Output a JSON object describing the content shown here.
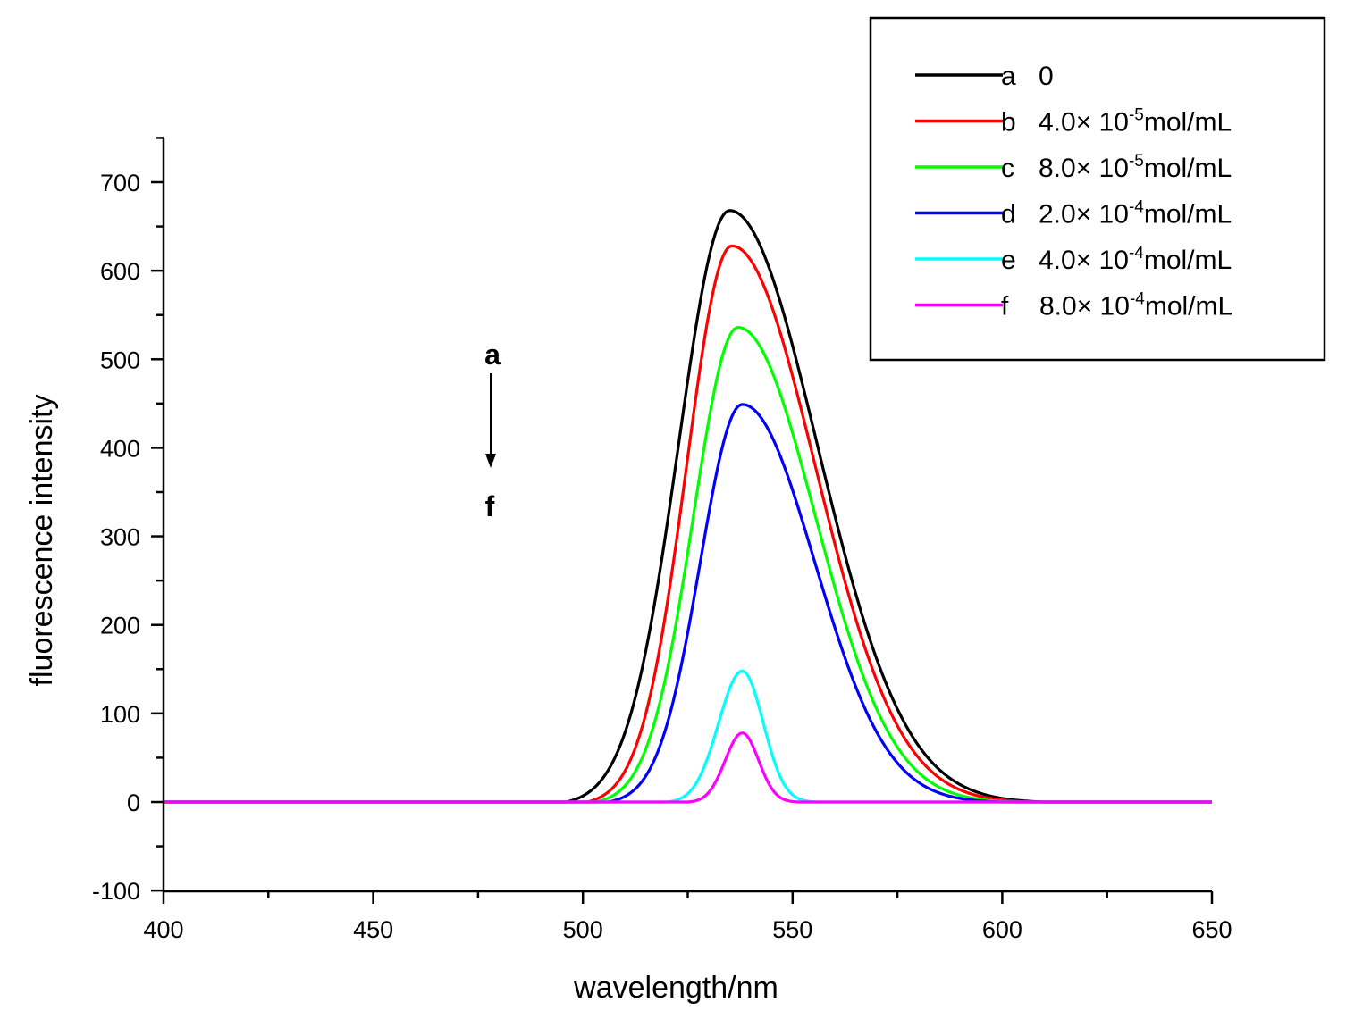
{
  "chart_data": {
    "type": "line",
    "title": "",
    "xlabel": "wavelength/nm",
    "ylabel": "fluorescence intensity",
    "xlim": [
      400,
      650
    ],
    "ylim": [
      -100,
      750
    ],
    "xticks": [
      400,
      450,
      500,
      550,
      600,
      650
    ],
    "yticks": [
      -100,
      0,
      100,
      200,
      300,
      400,
      500,
      600,
      700
    ],
    "grid": false,
    "legend_position": "top-right",
    "annotations": {
      "top_label": "a",
      "bottom_label": "f"
    },
    "series": [
      {
        "name": "a",
        "label_letter": "a",
        "label_value": "0",
        "superscript": "",
        "label_unit": "",
        "color": "#000000",
        "peak_x": 535,
        "peak_y": 668,
        "start_x": 496,
        "end_x": 610
      },
      {
        "name": "b",
        "label_letter": "b",
        "label_value": "4.0× 10",
        "superscript": "-5",
        "label_unit": "mol/mL",
        "color": "#ff0000",
        "peak_x": 535.5,
        "peak_y": 628,
        "start_x": 501,
        "end_x": 607
      },
      {
        "name": "c",
        "label_letter": "c",
        "label_value": "8.0× 10",
        "superscript": "-5",
        "label_unit": "mol/mL",
        "color": "#00ff00",
        "peak_x": 537,
        "peak_y": 536,
        "start_x": 503,
        "end_x": 603
      },
      {
        "name": "d",
        "label_letter": "d",
        "label_value": "2.0× 10",
        "superscript": "-4",
        "label_unit": "mol/mL",
        "color": "#0000ff",
        "peak_x": 538,
        "peak_y": 449,
        "start_x": 506,
        "end_x": 600
      },
      {
        "name": "e",
        "label_letter": "e",
        "label_value": "4.0× 10",
        "superscript": "-4",
        "label_unit": "mol/mL",
        "color": "#00ffff",
        "peak_x": 538,
        "peak_y": 148,
        "start_x": 520,
        "end_x": 556
      },
      {
        "name": "f",
        "label_letter": "f",
        "label_value": "8.0× 10",
        "superscript": "-4",
        "label_unit": "mol/mL",
        "color": "#ff00ff",
        "peak_x": 538,
        "peak_y": 78,
        "start_x": 525,
        "end_x": 552
      }
    ]
  }
}
